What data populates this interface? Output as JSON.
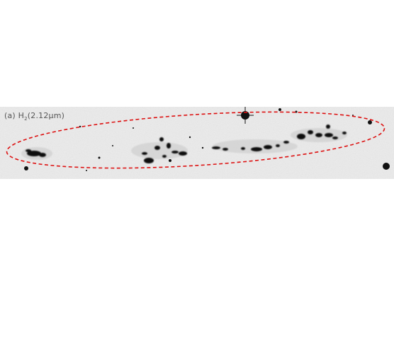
{
  "panel": {
    "label_prefix": "(a) H",
    "label_subscript": "2",
    "label_suffix": "(2.12μm)"
  },
  "colors": {
    "background": "#e9e9e9",
    "emission": "#111111",
    "ellipse": "#dd1111"
  }
}
